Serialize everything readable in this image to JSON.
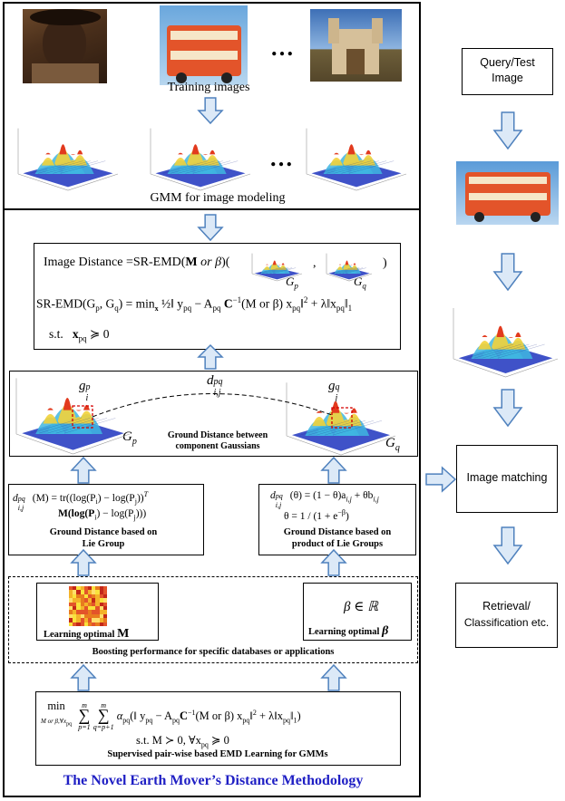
{
  "top_panel": {
    "training_label": "Training images",
    "ellipsis_top": "…",
    "ellipsis_gmm": "…",
    "gmm_label": "GMM for image modeling"
  },
  "distance_box": {
    "line1_prefix": "Image  Distance =SR-EMD(",
    "line1_M": "M",
    "line1_or": " or ",
    "line1_beta": "β",
    "line1_open": ")(",
    "line1_comma": ",",
    "line1_close": ")",
    "gp": "G",
    "gp_sub": "p",
    "gq": "G",
    "gq_sub": "q",
    "line2": "SR-EMD(G",
    "line2_rest": "p",
    "line2_mid": ", G",
    "line2_q": "q",
    "line2_eq": ") = min",
    "line2_min_sub": "x",
    "line2_frac": "½‖ y",
    "line2_body": " − A",
    "line2_pq": "pq",
    "line2_c": " C",
    "line2_inv": "−1",
    "line2_Mor": "(M or β) x",
    "line2_norm": "‖",
    "line2_two": "2",
    "line2_lambda": " + λ‖x",
    "line2_end": "‖",
    "line2_one": "1",
    "st_label": "s.t.",
    "st_expr": "x",
    "st_rel": " ≽ 0"
  },
  "ground_box": {
    "gip": "g",
    "gip_sub": "i",
    "gip_sup": "p",
    "gjq": "g",
    "gjq_sub": "j",
    "gjq_sup": "q",
    "d": "d",
    "d_sub": "i,j",
    "d_sup": "pq",
    "Gp": "G",
    "Gp_sub": "p",
    "Gq": "G",
    "Gq_sub": "q",
    "caption_line1": "Ground Distance between",
    "caption_line2": "component Gaussians"
  },
  "lie_box": {
    "formula_line1_a": "d",
    "formula_line1_sub": "i,j",
    "formula_line1_sup": "pq",
    "formula_line1_b": "(M) = tr((log(P",
    "formula_line1_i": "i",
    "formula_line1_c": ") − log(P",
    "formula_line1_j": "j",
    "formula_line1_d": "))",
    "formula_line1_T": "T",
    "formula_line2_a": "M(log(P",
    "formula_line2_i": "i",
    "formula_line2_b": ") − log(P",
    "formula_line2_j": "j",
    "formula_line2_c": ")))",
    "caption_line1": "Ground Distance based on",
    "caption_line2": "Lie Group"
  },
  "product_box": {
    "formula_line1_a": "d",
    "formula_line1_sub": "i,j",
    "formula_line1_sup": "pq",
    "formula_line1_b": "(θ) = (1 − θ)a",
    "formula_line1_ij": "i,j",
    "formula_line1_c": " + θb",
    "formula_line1_ij2": "i,j",
    "formula_line2_a": "θ = 1 / (1 + e",
    "formula_line2_sup": "−β",
    "formula_line2_b": ")",
    "caption_line1": "Ground Distance based on",
    "caption_line2": "product of Lie Groups"
  },
  "boost_panel": {
    "learn_M": "Learning optimal ",
    "learn_M_sym": "M",
    "beta_expr": "β ∈ ℝ",
    "learn_beta": "Learning optimal ",
    "learn_beta_sym": "β",
    "caption": "Boosting performance for specific databases or applications"
  },
  "supervised_box": {
    "min": "min",
    "min_sub": "M or β,∀x",
    "min_sub2": "pq",
    "sum1": "∑",
    "sum1_top": "m",
    "sum1_bot": "p=1",
    "sum2": "∑",
    "sum2_top": "m",
    "sum2_bot": "q=p+1",
    "alpha": "α",
    "alpha_sub": "pq",
    "body": "(‖ y",
    "pq1": "pq",
    "minusA": " − A",
    "pq2": "pq",
    "C": "C",
    "inv": "−1",
    "Mor": "(M or β) x",
    "pq3": "pq",
    "norm2": "‖",
    "two": "2",
    "lambda": " + λ‖x",
    "pq4": "pq",
    "end": "‖",
    "one": "1",
    "close": ")",
    "st": "s.t. M ≻ 0, ∀x",
    "st_pq": "pq",
    "st_end": " ≽ 0",
    "caption": "Supervised pair-wise based EMD Learning for GMMs"
  },
  "bottom_title": "The Novel Earth Mover’s Distance Methodology",
  "right_panel": {
    "query_line1": "Query/Test",
    "query_line2": "Image",
    "matching": "Image matching",
    "retrieval_line1": "Retrieval/",
    "retrieval_line2": "Classification etc."
  },
  "colors": {
    "title_blue": "#1f1fc4",
    "arrow_fill": "#dce9f7",
    "arrow_stroke": "#4f81bd",
    "bus_red": "#e3542a",
    "red_box": "#d40000"
  }
}
